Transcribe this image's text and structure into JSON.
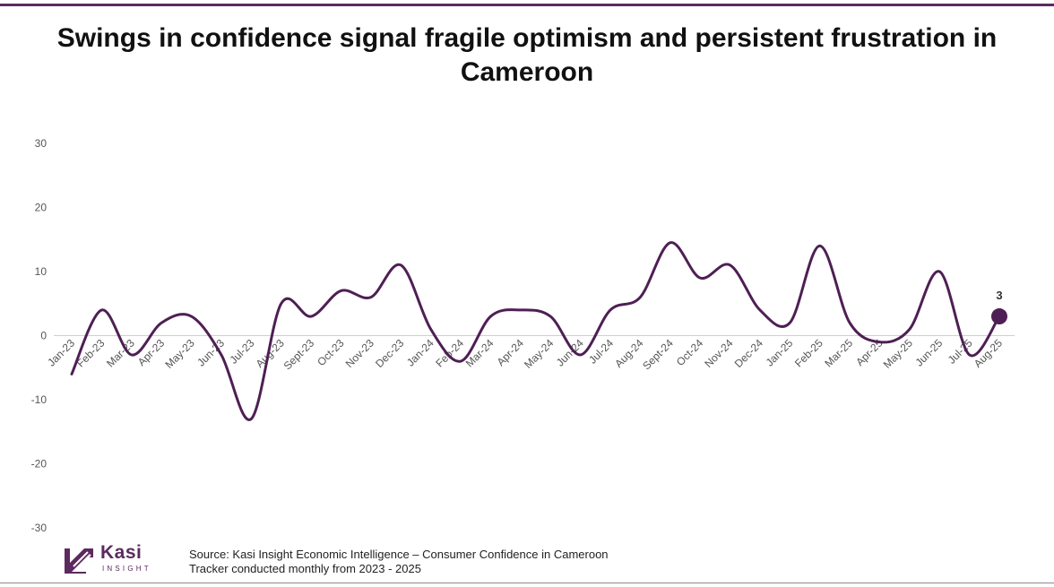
{
  "title": "Swings in confidence signal fragile optimism and persistent frustration in Cameroon",
  "colors": {
    "line": "#4e1f54",
    "accent": "#5b2a5e",
    "text": "#111111"
  },
  "chart_data": {
    "type": "line",
    "title": "Swings in confidence signal fragile optimism and persistent frustration in Cameroon",
    "xlabel": "",
    "ylabel": "",
    "ylim": [
      -30,
      30
    ],
    "yticks": [
      "30",
      "20",
      "10",
      "0",
      "-10",
      "-20",
      "-30"
    ],
    "grid": false,
    "categories": [
      "Jan-23",
      "Feb-23",
      "Mar-23",
      "Apr-23",
      "May-23",
      "Jun-23",
      "Jul-23",
      "Aug-23",
      "Sept-23",
      "Oct-23",
      "Nov-23",
      "Dec-23",
      "Jan-24",
      "Feb-24",
      "Mar-24",
      "Apr-24",
      "May-24",
      "Jun-24",
      "Jul-24",
      "Aug-24",
      "Sept-24",
      "Oct-24",
      "Nov-24",
      "Dec-24",
      "Jan-25",
      "Feb-25",
      "Mar-25",
      "Apr-25",
      "May-25",
      "Jun-25",
      "Jul-25",
      "Aug-25"
    ],
    "series": [
      {
        "name": "Consumer Confidence",
        "values": [
          -6,
          4,
          -3,
          2,
          3,
          -3,
          -13,
          5,
          3,
          7,
          6,
          11,
          1,
          -4,
          3,
          4,
          3,
          -3,
          4,
          6,
          14.5,
          9,
          11,
          4,
          2,
          14,
          2,
          -1,
          1,
          10,
          -3,
          3
        ]
      }
    ],
    "highlight": {
      "category": "Aug-25",
      "value": 3,
      "label": "3"
    }
  },
  "footer": {
    "logo_name": "Kasi",
    "logo_sub": "INSIGHT",
    "source_line1": "Source: Kasi Insight Economic Intelligence – Consumer Confidence in Cameroon",
    "source_line2": "Tracker conducted monthly from 2023 - 2025"
  }
}
